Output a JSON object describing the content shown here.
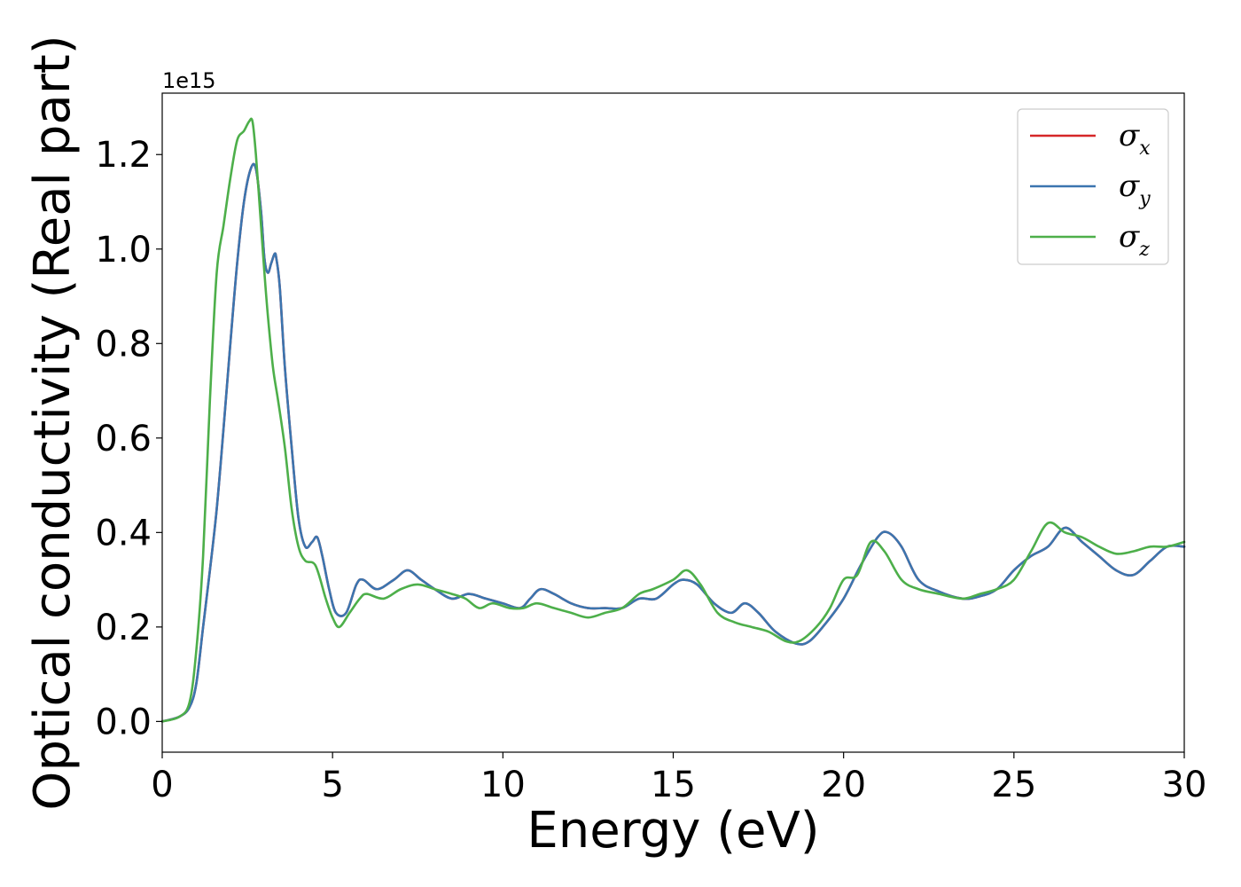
{
  "chart_data": {
    "type": "line",
    "xlabel": "Energy (eV)",
    "ylabel": "Optical conductivity (Real part)",
    "y_offset_label": "1e15",
    "xlim": [
      0,
      30
    ],
    "ylim": [
      -0.065,
      1.33
    ],
    "xticks": [
      0,
      5,
      10,
      15,
      20,
      25,
      30
    ],
    "xtick_labels": [
      "0",
      "5",
      "10",
      "15",
      "20",
      "25",
      "30"
    ],
    "yticks": [
      0.0,
      0.2,
      0.4,
      0.6,
      0.8,
      1.0,
      1.2
    ],
    "ytick_labels": [
      "0.0",
      "0.2",
      "0.4",
      "0.6",
      "0.8",
      "1.0",
      "1.2"
    ],
    "grid": false,
    "legend_position": "top-right",
    "series": [
      {
        "name": "σx",
        "base": "σ",
        "sub": "x",
        "color": "#d62728",
        "x": [
          0,
          0.5,
          0.8,
          1.0,
          1.2,
          1.4,
          1.6,
          1.8,
          2.0,
          2.2,
          2.4,
          2.6,
          2.75,
          2.9,
          3.0,
          3.1,
          3.2,
          3.3,
          3.35,
          3.45,
          3.6,
          3.8,
          4.0,
          4.2,
          4.4,
          4.55,
          4.7,
          4.9,
          5.1,
          5.4,
          5.7,
          5.9,
          6.3,
          6.8,
          7.2,
          7.6,
          8.0,
          8.5,
          9.0,
          9.5,
          10.0,
          10.5,
          10.8,
          11.1,
          11.5,
          12.0,
          12.5,
          13.0,
          13.5,
          14.0,
          14.5,
          15.0,
          15.3,
          15.7,
          16.2,
          16.7,
          17.1,
          17.5,
          18.0,
          18.6,
          19.0,
          19.5,
          20.0,
          20.5,
          21.0,
          21.3,
          21.7,
          22.2,
          22.8,
          23.5,
          24.0,
          24.5,
          25.0,
          25.5,
          26.0,
          26.5,
          27.0,
          27.5,
          28.0,
          28.5,
          29.0,
          29.5,
          30.0
        ],
        "values": [
          0,
          0.01,
          0.03,
          0.08,
          0.2,
          0.32,
          0.45,
          0.62,
          0.8,
          0.97,
          1.1,
          1.17,
          1.17,
          1.08,
          0.98,
          0.95,
          0.97,
          0.99,
          0.98,
          0.92,
          0.75,
          0.58,
          0.43,
          0.37,
          0.38,
          0.39,
          0.35,
          0.28,
          0.23,
          0.23,
          0.29,
          0.3,
          0.28,
          0.3,
          0.32,
          0.3,
          0.28,
          0.26,
          0.27,
          0.26,
          0.25,
          0.24,
          0.26,
          0.28,
          0.27,
          0.25,
          0.24,
          0.24,
          0.24,
          0.26,
          0.26,
          0.29,
          0.3,
          0.29,
          0.25,
          0.23,
          0.25,
          0.23,
          0.19,
          0.165,
          0.17,
          0.21,
          0.26,
          0.33,
          0.39,
          0.4,
          0.37,
          0.3,
          0.275,
          0.26,
          0.265,
          0.28,
          0.32,
          0.35,
          0.37,
          0.41,
          0.38,
          0.35,
          0.32,
          0.31,
          0.34,
          0.37,
          0.37
        ]
      },
      {
        "name": "σy",
        "base": "σ",
        "sub": "y",
        "color": "#3b75af",
        "x": [
          0,
          0.5,
          0.8,
          1.0,
          1.2,
          1.4,
          1.6,
          1.8,
          2.0,
          2.2,
          2.4,
          2.6,
          2.75,
          2.9,
          3.0,
          3.1,
          3.2,
          3.3,
          3.35,
          3.45,
          3.6,
          3.8,
          4.0,
          4.2,
          4.4,
          4.55,
          4.7,
          4.9,
          5.1,
          5.4,
          5.7,
          5.9,
          6.3,
          6.8,
          7.2,
          7.6,
          8.0,
          8.5,
          9.0,
          9.5,
          10.0,
          10.5,
          10.8,
          11.1,
          11.5,
          12.0,
          12.5,
          13.0,
          13.5,
          14.0,
          14.5,
          15.0,
          15.3,
          15.7,
          16.2,
          16.7,
          17.1,
          17.5,
          18.0,
          18.6,
          19.0,
          19.5,
          20.0,
          20.5,
          21.0,
          21.3,
          21.7,
          22.2,
          22.8,
          23.5,
          24.0,
          24.5,
          25.0,
          25.5,
          26.0,
          26.5,
          27.0,
          27.5,
          28.0,
          28.5,
          29.0,
          29.5,
          30.0
        ],
        "values": [
          0,
          0.01,
          0.03,
          0.08,
          0.2,
          0.32,
          0.45,
          0.62,
          0.8,
          0.97,
          1.1,
          1.17,
          1.17,
          1.08,
          0.98,
          0.95,
          0.97,
          0.99,
          0.98,
          0.92,
          0.75,
          0.58,
          0.43,
          0.37,
          0.38,
          0.39,
          0.35,
          0.28,
          0.23,
          0.23,
          0.29,
          0.3,
          0.28,
          0.3,
          0.32,
          0.3,
          0.28,
          0.26,
          0.27,
          0.26,
          0.25,
          0.24,
          0.26,
          0.28,
          0.27,
          0.25,
          0.24,
          0.24,
          0.24,
          0.26,
          0.26,
          0.29,
          0.3,
          0.29,
          0.25,
          0.23,
          0.25,
          0.23,
          0.19,
          0.165,
          0.17,
          0.21,
          0.26,
          0.33,
          0.39,
          0.4,
          0.37,
          0.3,
          0.275,
          0.26,
          0.265,
          0.28,
          0.32,
          0.35,
          0.37,
          0.41,
          0.38,
          0.35,
          0.32,
          0.31,
          0.34,
          0.37,
          0.37
        ]
      },
      {
        "name": "σz",
        "base": "σ",
        "sub": "z",
        "color": "#4daf4a",
        "x": [
          0,
          0.5,
          0.8,
          1.0,
          1.2,
          1.4,
          1.6,
          1.8,
          2.0,
          2.2,
          2.4,
          2.55,
          2.65,
          2.75,
          2.9,
          3.0,
          3.1,
          3.25,
          3.4,
          3.6,
          3.8,
          4.0,
          4.2,
          4.5,
          4.8,
          5.0,
          5.2,
          5.5,
          5.8,
          6.0,
          6.5,
          7.0,
          7.5,
          8.0,
          8.5,
          8.9,
          9.3,
          9.7,
          10.2,
          10.6,
          11.0,
          11.5,
          12.0,
          12.5,
          13.0,
          13.5,
          14.0,
          14.4,
          15.0,
          15.4,
          15.8,
          16.3,
          16.8,
          17.3,
          17.8,
          18.3,
          18.7,
          19.2,
          19.6,
          20.0,
          20.4,
          20.8,
          21.2,
          21.7,
          22.2,
          22.8,
          23.5,
          24.0,
          24.5,
          25.0,
          25.5,
          26.0,
          26.5,
          27.0,
          27.5,
          28.0,
          28.5,
          29.0,
          29.5,
          30.0
        ],
        "values": [
          0,
          0.01,
          0.04,
          0.15,
          0.35,
          0.68,
          0.95,
          1.05,
          1.15,
          1.23,
          1.25,
          1.27,
          1.27,
          1.2,
          1.05,
          0.95,
          0.86,
          0.75,
          0.68,
          0.58,
          0.45,
          0.37,
          0.34,
          0.33,
          0.26,
          0.22,
          0.2,
          0.23,
          0.26,
          0.27,
          0.26,
          0.28,
          0.29,
          0.28,
          0.27,
          0.26,
          0.24,
          0.25,
          0.24,
          0.24,
          0.25,
          0.24,
          0.23,
          0.22,
          0.23,
          0.24,
          0.27,
          0.28,
          0.3,
          0.32,
          0.29,
          0.23,
          0.21,
          0.2,
          0.19,
          0.17,
          0.17,
          0.2,
          0.24,
          0.3,
          0.31,
          0.38,
          0.36,
          0.3,
          0.28,
          0.27,
          0.26,
          0.27,
          0.28,
          0.3,
          0.36,
          0.42,
          0.4,
          0.39,
          0.37,
          0.355,
          0.36,
          0.37,
          0.37,
          0.38
        ]
      }
    ]
  }
}
